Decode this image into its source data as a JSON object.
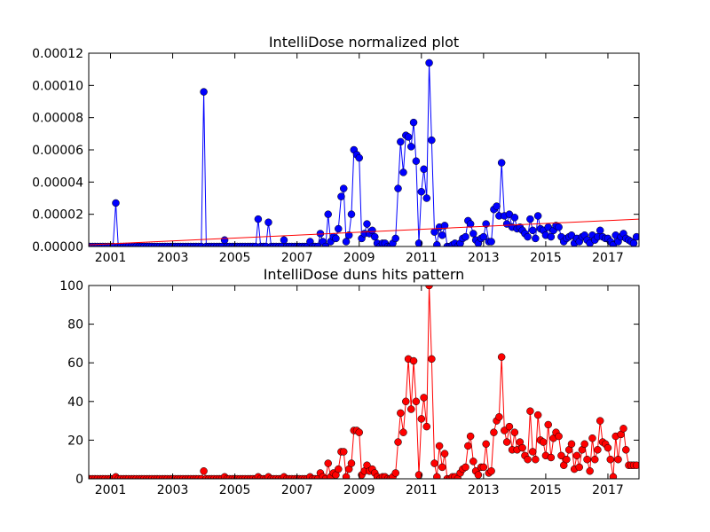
{
  "chart_data": [
    {
      "type": "line",
      "title": "IntelliDose normalized plot",
      "x": [
        2000.33,
        2000.42,
        2000.5,
        2000.58,
        2000.67,
        2000.75,
        2000.83,
        2000.92,
        2001,
        2001.08,
        2001.17,
        2001.25,
        2001.33,
        2001.42,
        2001.5,
        2001.58,
        2001.67,
        2001.75,
        2001.83,
        2001.92,
        2002,
        2002.08,
        2002.17,
        2002.25,
        2002.33,
        2002.42,
        2002.5,
        2002.58,
        2002.67,
        2002.75,
        2002.83,
        2002.92,
        2003,
        2003.08,
        2003.17,
        2003.25,
        2003.33,
        2003.42,
        2003.5,
        2003.58,
        2003.67,
        2003.75,
        2003.83,
        2003.92,
        2004,
        2004.08,
        2004.17,
        2004.25,
        2004.33,
        2004.42,
        2004.5,
        2004.58,
        2004.67,
        2004.75,
        2004.83,
        2004.92,
        2005,
        2005.08,
        2005.17,
        2005.25,
        2005.33,
        2005.42,
        2005.5,
        2005.58,
        2005.67,
        2005.75,
        2005.83,
        2005.92,
        2006,
        2006.08,
        2006.17,
        2006.25,
        2006.33,
        2006.42,
        2006.5,
        2006.58,
        2006.67,
        2006.75,
        2006.83,
        2006.92,
        2007,
        2007.08,
        2007.17,
        2007.25,
        2007.33,
        2007.42,
        2007.5,
        2007.58,
        2007.67,
        2007.75,
        2007.83,
        2007.92,
        2008,
        2008.08,
        2008.17,
        2008.25,
        2008.33,
        2008.42,
        2008.5,
        2008.58,
        2008.67,
        2008.75,
        2008.83,
        2008.92,
        2009,
        2009.08,
        2009.17,
        2009.25,
        2009.33,
        2009.42,
        2009.5,
        2009.58,
        2009.67,
        2009.75,
        2009.83,
        2009.92,
        2010,
        2010.08,
        2010.17,
        2010.25,
        2010.33,
        2010.42,
        2010.5,
        2010.58,
        2010.67,
        2010.75,
        2010.83,
        2010.92,
        2011,
        2011.08,
        2011.17,
        2011.25,
        2011.33,
        2011.42,
        2011.5,
        2011.58,
        2011.67,
        2011.75,
        2011.83,
        2011.92,
        2012,
        2012.08,
        2012.17,
        2012.25,
        2012.33,
        2012.42,
        2012.5,
        2012.58,
        2012.67,
        2012.75,
        2012.83,
        2012.92,
        2013,
        2013.08,
        2013.17,
        2013.25,
        2013.33,
        2013.42,
        2013.5,
        2013.58,
        2013.67,
        2013.75,
        2013.83,
        2013.92,
        2014,
        2014.08,
        2014.17,
        2014.25,
        2014.33,
        2014.42,
        2014.5,
        2014.58,
        2014.67,
        2014.75,
        2014.83,
        2014.92,
        2015,
        2015.08,
        2015.17,
        2015.25,
        2015.33,
        2015.42,
        2015.5,
        2015.58,
        2015.67,
        2015.75,
        2015.83,
        2015.92,
        2016,
        2016.08,
        2016.17,
        2016.25,
        2016.33,
        2016.42,
        2016.5,
        2016.58,
        2016.67,
        2016.75,
        2016.83,
        2016.92,
        2017,
        2017.08,
        2017.17,
        2017.25,
        2017.33,
        2017.42,
        2017.5,
        2017.58,
        2017.67,
        2017.75,
        2017.83,
        2017.92
      ],
      "series": [
        {
          "color": "#0000ff",
          "values": [
            0,
            0,
            0,
            0,
            0,
            0,
            0,
            0,
            0,
            0,
            2.7e-05,
            0,
            0,
            0,
            0,
            0,
            0,
            0,
            0,
            0,
            0,
            0,
            0,
            0,
            0,
            0,
            0,
            0,
            0,
            0,
            0,
            0,
            0,
            0,
            0,
            0,
            0,
            0,
            0,
            0,
            0,
            0,
            0,
            0,
            9.6e-05,
            0,
            0,
            0,
            0,
            0,
            0,
            0,
            4e-06,
            0,
            0,
            0,
            0,
            0,
            0,
            0,
            0,
            0,
            0,
            0,
            0,
            1.7e-05,
            0,
            0,
            0,
            1.5e-05,
            0,
            0,
            0,
            0,
            0,
            4e-06,
            0,
            0,
            0,
            0,
            0,
            0,
            0,
            0,
            0,
            3e-06,
            0,
            0,
            0,
            8e-06,
            3e-06,
            0,
            2e-05,
            3e-06,
            6e-06,
            5e-06,
            1.1e-05,
            3.1e-05,
            3.6e-05,
            3e-06,
            7e-06,
            2e-05,
            6e-05,
            5.7e-05,
            5.5e-05,
            5e-06,
            8e-06,
            1.4e-05,
            8e-06,
            1e-05,
            6e-06,
            2e-06,
            0,
            2e-06,
            2e-06,
            0,
            0,
            2e-06,
            5e-06,
            3.6e-05,
            6.5e-05,
            4.6e-05,
            6.9e-05,
            6.8e-05,
            6.2e-05,
            7.7e-05,
            5.3e-05,
            2e-06,
            3.4e-05,
            4.8e-05,
            3e-05,
            0.000114,
            6.6e-05,
            9e-06,
            1e-06,
            1.2e-05,
            7e-06,
            1.3e-05,
            0,
            0,
            1e-06,
            2e-06,
            0,
            2e-06,
            5e-06,
            6e-06,
            1.6e-05,
            1.4e-05,
            8e-06,
            4e-06,
            2e-06,
            5e-06,
            6e-06,
            1.4e-05,
            3e-06,
            3e-06,
            2.3e-05,
            2.5e-05,
            1.9e-05,
            5.2e-05,
            1.9e-05,
            1.4e-05,
            2e-05,
            1.2e-05,
            1.8e-05,
            1.1e-05,
            1.2e-05,
            1e-05,
            8e-06,
            6e-06,
            1.7e-05,
            1e-05,
            5e-06,
            1.9e-05,
            1.1e-05,
            1e-05,
            7e-06,
            1.2e-05,
            6e-06,
            1e-05,
            1.3e-05,
            1.2e-05,
            6e-06,
            3e-06,
            5e-06,
            6e-06,
            7e-06,
            2e-06,
            5e-06,
            3e-06,
            6e-06,
            7e-06,
            4e-06,
            2e-06,
            7e-06,
            4e-06,
            6e-06,
            1e-05,
            6e-06,
            5e-06,
            5e-06,
            3e-06,
            1e-06,
            7e-06,
            3e-06,
            6e-06,
            8e-06,
            5e-06,
            4e-06,
            3e-06,
            2e-06,
            6e-06
          ]
        }
      ],
      "trend": {
        "color": "#ff0000",
        "x": [
          2000.3,
          2018.0
        ],
        "values": [
          1e-06,
          1.7e-05
        ]
      },
      "xlim": [
        2000.3,
        2018.0
      ],
      "xticks": [
        2001,
        2003,
        2005,
        2007,
        2009,
        2011,
        2013,
        2015,
        2017
      ],
      "ylim": [
        0,
        0.00012
      ],
      "yticks": [
        {
          "value": 0,
          "label": "0.00000"
        },
        2e-05,
        4e-05,
        6e-05,
        8e-05,
        {
          "value": 0.0001,
          "label": "0.00010"
        },
        0.00012
      ]
    },
    {
      "type": "line",
      "title": "IntelliDose duns hits pattern",
      "x": [
        2000.33,
        2000.42,
        2000.5,
        2000.58,
        2000.67,
        2000.75,
        2000.83,
        2000.92,
        2001,
        2001.08,
        2001.17,
        2001.25,
        2001.33,
        2001.42,
        2001.5,
        2001.58,
        2001.67,
        2001.75,
        2001.83,
        2001.92,
        2002,
        2002.08,
        2002.17,
        2002.25,
        2002.33,
        2002.42,
        2002.5,
        2002.58,
        2002.67,
        2002.75,
        2002.83,
        2002.92,
        2003,
        2003.08,
        2003.17,
        2003.25,
        2003.33,
        2003.42,
        2003.5,
        2003.58,
        2003.67,
        2003.75,
        2003.83,
        2003.92,
        2004,
        2004.08,
        2004.17,
        2004.25,
        2004.33,
        2004.42,
        2004.5,
        2004.58,
        2004.67,
        2004.75,
        2004.83,
        2004.92,
        2005,
        2005.08,
        2005.17,
        2005.25,
        2005.33,
        2005.42,
        2005.5,
        2005.58,
        2005.67,
        2005.75,
        2005.83,
        2005.92,
        2006,
        2006.08,
        2006.17,
        2006.25,
        2006.33,
        2006.42,
        2006.5,
        2006.58,
        2006.67,
        2006.75,
        2006.83,
        2006.92,
        2007,
        2007.08,
        2007.17,
        2007.25,
        2007.33,
        2007.42,
        2007.5,
        2007.58,
        2007.67,
        2007.75,
        2007.83,
        2007.92,
        2008,
        2008.08,
        2008.17,
        2008.25,
        2008.33,
        2008.42,
        2008.5,
        2008.58,
        2008.67,
        2008.75,
        2008.83,
        2008.92,
        2009,
        2009.08,
        2009.17,
        2009.25,
        2009.33,
        2009.42,
        2009.5,
        2009.58,
        2009.67,
        2009.75,
        2009.83,
        2009.92,
        2010,
        2010.08,
        2010.17,
        2010.25,
        2010.33,
        2010.42,
        2010.5,
        2010.58,
        2010.67,
        2010.75,
        2010.83,
        2010.92,
        2011,
        2011.08,
        2011.17,
        2011.25,
        2011.33,
        2011.42,
        2011.5,
        2011.58,
        2011.67,
        2011.75,
        2011.83,
        2011.92,
        2012,
        2012.08,
        2012.17,
        2012.25,
        2012.33,
        2012.42,
        2012.5,
        2012.58,
        2012.67,
        2012.75,
        2012.83,
        2012.92,
        2013,
        2013.08,
        2013.17,
        2013.25,
        2013.33,
        2013.42,
        2013.5,
        2013.58,
        2013.67,
        2013.75,
        2013.83,
        2013.92,
        2014,
        2014.08,
        2014.17,
        2014.25,
        2014.33,
        2014.42,
        2014.5,
        2014.58,
        2014.67,
        2014.75,
        2014.83,
        2014.92,
        2015,
        2015.08,
        2015.17,
        2015.25,
        2015.33,
        2015.42,
        2015.5,
        2015.58,
        2015.67,
        2015.75,
        2015.83,
        2015.92,
        2016,
        2016.08,
        2016.17,
        2016.25,
        2016.33,
        2016.42,
        2016.5,
        2016.58,
        2016.67,
        2016.75,
        2016.83,
        2016.92,
        2017,
        2017.08,
        2017.17,
        2017.25,
        2017.33,
        2017.42,
        2017.5,
        2017.58,
        2017.67,
        2017.75,
        2017.83,
        2017.92
      ],
      "series": [
        {
          "color": "#ff0000",
          "values": [
            0,
            0,
            0,
            0,
            0,
            0,
            0,
            0,
            0,
            0,
            1,
            0,
            0,
            0,
            0,
            0,
            0,
            0,
            0,
            0,
            0,
            0,
            0,
            0,
            0,
            0,
            0,
            0,
            0,
            0,
            0,
            0,
            0,
            0,
            0,
            0,
            0,
            0,
            0,
            0,
            0,
            0,
            0,
            0,
            4,
            0,
            0,
            0,
            0,
            0,
            0,
            0,
            1,
            0,
            0,
            0,
            0,
            0,
            0,
            0,
            0,
            0,
            0,
            0,
            0,
            1,
            0,
            0,
            0,
            1,
            0,
            0,
            0,
            0,
            0,
            1,
            0,
            0,
            0,
            0,
            0,
            0,
            0,
            0,
            0,
            1,
            0,
            0,
            0,
            3,
            1,
            0,
            8,
            1,
            3,
            2,
            5,
            14,
            14,
            1,
            5,
            8,
            25,
            25,
            24,
            2,
            4,
            7,
            4,
            5,
            3,
            1,
            0,
            1,
            1,
            0,
            0,
            1,
            3,
            19,
            34,
            24,
            40,
            62,
            36,
            61,
            40,
            2,
            31,
            42,
            27,
            100,
            62,
            8,
            1,
            17,
            6,
            13,
            0,
            0,
            1,
            1,
            0,
            3,
            5,
            6,
            17,
            22,
            9,
            4,
            2,
            6,
            6,
            18,
            3,
            4,
            24,
            30,
            32,
            63,
            25,
            19,
            27,
            15,
            24,
            15,
            19,
            16,
            12,
            10,
            35,
            14,
            10,
            33,
            20,
            19,
            12,
            28,
            11,
            21,
            24,
            22,
            12,
            7,
            10,
            15,
            18,
            5,
            12,
            6,
            15,
            18,
            10,
            4,
            21,
            10,
            15,
            30,
            19,
            18,
            16,
            10,
            1,
            22,
            10,
            23,
            26,
            15,
            7,
            7,
            7,
            7
          ]
        }
      ],
      "xlim": [
        2000.3,
        2018.0
      ],
      "xticks": [
        2001,
        2003,
        2005,
        2007,
        2009,
        2011,
        2013,
        2015,
        2017
      ],
      "ylim": [
        0,
        100
      ],
      "yticks": [
        0,
        20,
        40,
        60,
        80,
        100
      ]
    }
  ]
}
